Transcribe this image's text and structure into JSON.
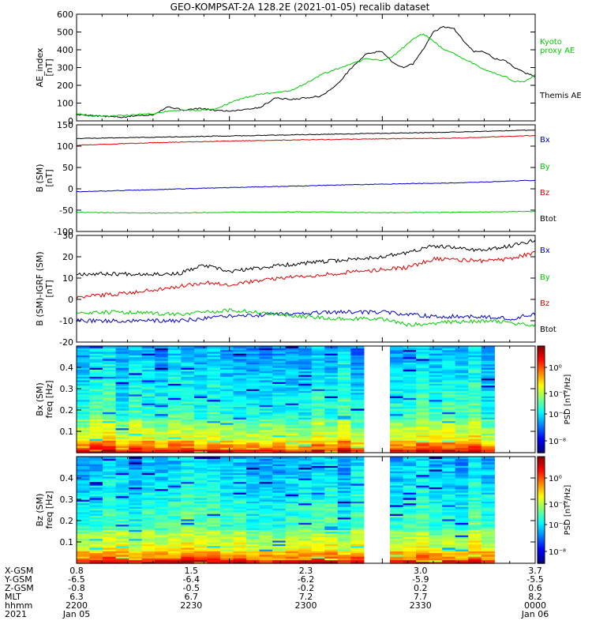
{
  "title": "GEO-KOMPSAT-2A 128.2E (2021-01-05) recalib dataset",
  "colors": {
    "black": "#000000",
    "red": "#dd0000",
    "blue": "#0000cc",
    "green": "#00cc00"
  },
  "chart_data": [
    {
      "type": "line",
      "panel": "ae",
      "ylabel": [
        "AE_index",
        "[nT]"
      ],
      "ylim": [
        0,
        600
      ],
      "yticks": [
        0,
        100,
        200,
        300,
        400,
        500,
        600
      ],
      "yticklabels": [
        "0",
        "100",
        "200",
        "300",
        "400",
        "500",
        "600"
      ],
      "legend": [
        {
          "text": "Kyoto",
          "color": "#00cc00"
        },
        {
          "text": "proxy AE",
          "color": "#00cc00"
        },
        {
          "text": "Themis AE",
          "color": "#000000"
        }
      ],
      "series": [
        {
          "name": "Themis AE",
          "color": "#000000",
          "x": [
            0,
            3,
            6,
            9,
            12,
            15,
            18,
            21,
            24,
            27,
            30,
            33,
            36,
            39,
            42,
            45,
            48,
            51,
            54,
            57,
            60,
            62,
            64,
            66,
            68,
            70,
            72,
            74,
            76,
            78,
            80,
            82,
            84,
            86,
            88,
            90
          ],
          "y": [
            35,
            30,
            25,
            20,
            30,
            35,
            80,
            60,
            70,
            60,
            55,
            65,
            75,
            130,
            120,
            130,
            140,
            200,
            300,
            380,
            390,
            330,
            300,
            320,
            400,
            500,
            530,
            520,
            450,
            390,
            390,
            350,
            340,
            300,
            270,
            250
          ]
        },
        {
          "name": "Kyoto proxy AE",
          "color": "#00cc00",
          "x": [
            0,
            3,
            6,
            9,
            12,
            15,
            18,
            21,
            24,
            27,
            30,
            33,
            36,
            39,
            42,
            45,
            48,
            51,
            54,
            57,
            60,
            62,
            64,
            66,
            68,
            70,
            72,
            74,
            76,
            78,
            80,
            82,
            84,
            86,
            88,
            90
          ],
          "y": [
            40,
            30,
            25,
            30,
            35,
            40,
            55,
            60,
            60,
            65,
            100,
            130,
            150,
            160,
            170,
            210,
            260,
            290,
            320,
            350,
            340,
            360,
            410,
            460,
            490,
            450,
            400,
            380,
            350,
            320,
            290,
            270,
            250,
            220,
            220,
            260
          ]
        }
      ]
    },
    {
      "type": "line",
      "panel": "bsm",
      "ylabel": [
        "B (SM)",
        "[nT]"
      ],
      "ylim": [
        -100,
        150
      ],
      "yticks": [
        -100,
        -50,
        0,
        50,
        100,
        150
      ],
      "yticklabels": [
        "-100",
        "-50",
        "0",
        "50",
        "100",
        "150"
      ],
      "legend": [
        {
          "text": "Bx",
          "color": "#0000cc"
        },
        {
          "text": "By",
          "color": "#00cc00"
        },
        {
          "text": "Bz",
          "color": "#dd0000"
        },
        {
          "text": "Btot",
          "color": "#000000"
        }
      ],
      "series": [
        {
          "name": "Btot",
          "color": "#000000",
          "x": [
            0,
            15,
            30,
            45,
            60,
            75,
            90
          ],
          "y": [
            118,
            121,
            124,
            127,
            130,
            133,
            138
          ]
        },
        {
          "name": "Bz",
          "color": "#dd0000",
          "x": [
            0,
            15,
            30,
            45,
            60,
            75,
            90
          ],
          "y": [
            102,
            108,
            112,
            115,
            117,
            119,
            125
          ]
        },
        {
          "name": "Bx",
          "color": "#0000cc",
          "x": [
            0,
            15,
            30,
            45,
            60,
            75,
            90
          ],
          "y": [
            -7,
            -2,
            3,
            7,
            11,
            14,
            20
          ]
        },
        {
          "name": "By",
          "color": "#00cc00",
          "x": [
            0,
            15,
            30,
            45,
            60,
            75,
            90
          ],
          "y": [
            -55,
            -57,
            -55,
            -54,
            -56,
            -55,
            -53
          ]
        }
      ]
    },
    {
      "type": "line",
      "panel": "bigrf",
      "ylabel": [
        "B (SM)-IGRF (SM)",
        "[nT]"
      ],
      "ylim": [
        -20,
        30
      ],
      "yticks": [
        -20,
        -10,
        0,
        10,
        20,
        30
      ],
      "yticklabels": [
        "-20",
        "-10",
        "0",
        "10",
        "20",
        "30"
      ],
      "legend": [
        {
          "text": "Bx",
          "color": "#0000cc"
        },
        {
          "text": "By",
          "color": "#00cc00"
        },
        {
          "text": "Bz",
          "color": "#dd0000"
        },
        {
          "text": "Btot",
          "color": "#000000"
        }
      ],
      "series": [
        {
          "name": "Btot",
          "color": "#000000",
          "x": [
            0,
            10,
            20,
            25,
            30,
            40,
            50,
            60,
            65,
            70,
            80,
            85,
            90
          ],
          "y": [
            12,
            12,
            12,
            16,
            13,
            16,
            18,
            20,
            22,
            25,
            23,
            25,
            28
          ]
        },
        {
          "name": "Bz",
          "color": "#dd0000",
          "x": [
            0,
            10,
            20,
            25,
            30,
            40,
            50,
            60,
            65,
            70,
            80,
            85,
            90
          ],
          "y": [
            1,
            3,
            6,
            8,
            7,
            10,
            12,
            14,
            15,
            19,
            18,
            19,
            22
          ]
        },
        {
          "name": "Bx",
          "color": "#0000cc",
          "x": [
            0,
            10,
            20,
            25,
            30,
            40,
            50,
            60,
            65,
            70,
            80,
            85,
            90
          ],
          "y": [
            -10,
            -10,
            -10,
            -9,
            -8,
            -7,
            -6,
            -6,
            -7,
            -8,
            -8,
            -9,
            -7
          ]
        },
        {
          "name": "By",
          "color": "#00cc00",
          "x": [
            0,
            10,
            20,
            25,
            30,
            40,
            50,
            60,
            65,
            70,
            80,
            85,
            90
          ],
          "y": [
            -6,
            -6,
            -7,
            -6,
            -5,
            -7,
            -9,
            -9,
            -12,
            -11,
            -10,
            -11,
            -12
          ]
        }
      ]
    },
    {
      "type": "heatmap",
      "panel": "bx",
      "ylabel": [
        "Bx (SM)",
        "freq [Hz]"
      ],
      "ylim": [
        0,
        0.5
      ],
      "yticks": [
        0.1,
        0.2,
        0.3,
        0.4
      ],
      "yticklabels": [
        "0.1",
        "0.2",
        "0.3",
        "0.4"
      ],
      "colorbar_label": "PSD [nT²/Hz]",
      "colorbar_ticks": [
        "10⁰",
        "10⁻²",
        "10⁻⁴",
        "10⁻⁸"
      ],
      "gap_x": [
        57.5,
        61
      ],
      "seed": 7
    },
    {
      "type": "heatmap",
      "panel": "bz",
      "ylabel": [
        "Bz (SM)",
        "freq [Hz]"
      ],
      "ylim": [
        0,
        0.5
      ],
      "yticks": [
        0.1,
        0.2,
        0.3,
        0.4
      ],
      "yticklabels": [
        "0.1",
        "0.2",
        "0.3",
        "0.4"
      ],
      "colorbar_label": "PSD [nT²/Hz]",
      "colorbar_ticks": [
        "10⁰",
        "10⁻²",
        "10⁻⁴",
        "10⁻⁸"
      ],
      "gap_x": [
        57.5,
        61
      ],
      "seed": 19
    }
  ],
  "ephemeris": {
    "row_labels": [
      "X-GSM",
      "Y-GSM",
      "Z-GSM",
      "MLT",
      "hhmm",
      "2021"
    ],
    "columns": [
      {
        "x": 0,
        "values": [
          "0.8",
          "-6.5",
          "-0.8",
          "6.3",
          "2200",
          "Jan 05"
        ]
      },
      {
        "x": 22.5,
        "values": [
          "1.5",
          "-6.4",
          "-0.5",
          "6.7",
          "2230",
          ""
        ]
      },
      {
        "x": 45,
        "values": [
          "2.3",
          "-6.2",
          "-0.2",
          "7.2",
          "2300",
          ""
        ]
      },
      {
        "x": 67.5,
        "values": [
          "3.0",
          "-5.9",
          "0.2",
          "7.7",
          "2330",
          ""
        ]
      },
      {
        "x": 90,
        "values": [
          "3.7",
          "-5.5",
          "0.6",
          "8.2",
          "0000",
          "Jan 06"
        ]
      }
    ]
  }
}
